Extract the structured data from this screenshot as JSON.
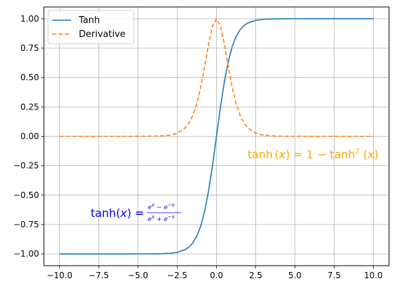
{
  "chart_data": {
    "type": "line",
    "title": "",
    "xlabel": "",
    "ylabel": "",
    "xlim": [
      -11,
      11
    ],
    "ylim": [
      -1.1,
      1.1
    ],
    "grid": true,
    "legend_position": "top-left",
    "x_ticks": [
      -10.0,
      -7.5,
      -5.0,
      -2.5,
      0.0,
      2.5,
      5.0,
      7.5,
      10.0
    ],
    "x_tick_labels": [
      "−10.0",
      "−7.5",
      "−5.0",
      "−2.5",
      "0.0",
      "2.5",
      "5.0",
      "7.5",
      "10.0"
    ],
    "y_ticks": [
      -1.0,
      -0.75,
      -0.5,
      -0.25,
      0.0,
      0.25,
      0.5,
      0.75,
      1.0
    ],
    "y_tick_labels": [
      "−1.00",
      "−0.75",
      "−0.50",
      "−0.25",
      "0.00",
      "0.25",
      "0.50",
      "0.75",
      "1.00"
    ],
    "series": [
      {
        "name": "Tanh",
        "color": "#1f77b4",
        "style": "solid",
        "x": [
          -10,
          -9,
          -8,
          -7,
          -6,
          -5,
          -4,
          -3.5,
          -3,
          -2.5,
          -2,
          -1.75,
          -1.5,
          -1.25,
          -1,
          -0.75,
          -0.5,
          -0.25,
          0,
          0.25,
          0.5,
          0.75,
          1,
          1.25,
          1.5,
          1.75,
          2,
          2.5,
          3,
          3.5,
          4,
          5,
          6,
          7,
          8,
          9,
          10
        ],
        "y": [
          -1.0,
          -1.0,
          -1.0,
          -1.0,
          -1.0,
          -0.9999,
          -0.9993,
          -0.9982,
          -0.9951,
          -0.9866,
          -0.964,
          -0.9414,
          -0.9051,
          -0.8483,
          -0.7616,
          -0.6351,
          -0.4621,
          -0.2449,
          0.0,
          0.2449,
          0.4621,
          0.6351,
          0.7616,
          0.8483,
          0.9051,
          0.9414,
          0.964,
          0.9866,
          0.9951,
          0.9982,
          0.9993,
          0.9999,
          1.0,
          1.0,
          1.0,
          1.0,
          1.0
        ]
      },
      {
        "name": "Derivative",
        "color": "#ff7f0e",
        "style": "dashed",
        "x": [
          -10,
          -9,
          -8,
          -7,
          -6,
          -5,
          -4,
          -3.5,
          -3,
          -2.5,
          -2,
          -1.75,
          -1.5,
          -1.25,
          -1,
          -0.75,
          -0.5,
          -0.25,
          0,
          0.25,
          0.5,
          0.75,
          1,
          1.25,
          1.5,
          1.75,
          2,
          2.5,
          3,
          3.5,
          4,
          5,
          6,
          7,
          8,
          9,
          10
        ],
        "y": [
          0.0,
          0.0,
          0.0,
          0.0,
          0.0,
          0.0002,
          0.0013,
          0.0036,
          0.0099,
          0.0266,
          0.0707,
          0.1139,
          0.1807,
          0.2804,
          0.42,
          0.5966,
          0.7864,
          0.94,
          1.0,
          0.94,
          0.7864,
          0.5966,
          0.42,
          0.2804,
          0.1807,
          0.1139,
          0.0707,
          0.0266,
          0.0099,
          0.0036,
          0.0013,
          0.0002,
          0.0,
          0.0,
          0.0,
          0.0,
          0.0
        ]
      }
    ],
    "annotations": [
      {
        "color": "#0000ff",
        "lhs": "tanh(",
        "var": "x",
        "close": ")",
        "eq": " = ",
        "num_a": "e",
        "num_a_sup": "x",
        "num_op": " − ",
        "num_b": "e",
        "num_b_sup": "−x",
        "den_a": "e",
        "den_a_sup": "x",
        "den_op": " + ",
        "den_b": "e",
        "den_b_sup": "−x"
      },
      {
        "color": "#ffa500",
        "lhs": "tanh",
        "prime": "′",
        "open": "(",
        "var": "x",
        "close": ")",
        "eq": " = 1 − tanh",
        "sup": "2",
        "open2": " (",
        "var2": "x",
        "close2": ")"
      }
    ]
  }
}
